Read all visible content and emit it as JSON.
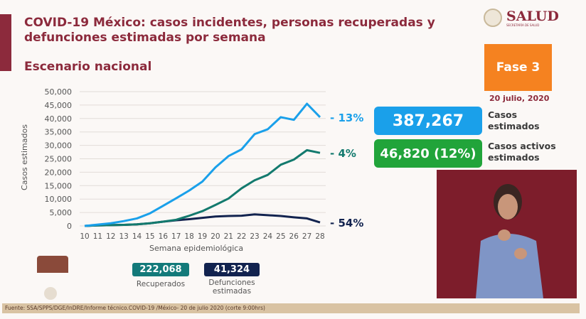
{
  "header": {
    "title": "COVID-19 México: casos incidentes, personas recuperadas y defunciones estimadas por semana",
    "subtitle": "Escenario nacional",
    "logo_text": "SALUD",
    "logo_subtext": "SECRETARÍA DE SALUD"
  },
  "phase": {
    "label": "Fase 3",
    "date": "20 julio, 2020",
    "color": "#f58220"
  },
  "stats": [
    {
      "value": "387,267",
      "label": "Casos estimados",
      "color": "#1aa0ea"
    },
    {
      "value": "46,820 (12%)",
      "label": "Casos activos estimados",
      "color": "#21a43a"
    }
  ],
  "totals": [
    {
      "value": "222,068",
      "label": "Recuperados",
      "color": "#137a7a"
    },
    {
      "value": "41,324",
      "label": "Defunciones estimadas",
      "color": "#12234f"
    }
  ],
  "footer": "Fuente: SSA/SPPS/DGE/InDRE/Informe técnico.COVID-19 /México- 20 de julio 2020 (corte 9:00hrs)",
  "chart_data": {
    "type": "line",
    "xlabel": "Semana epidemiológica",
    "ylabel": "Casos estimados",
    "ylim": [
      0,
      50000
    ],
    "yticks": [
      0,
      5000,
      10000,
      15000,
      20000,
      25000,
      30000,
      35000,
      40000,
      45000,
      50000
    ],
    "ytick_labels": [
      "0",
      "5,000",
      "10,000",
      "15,000",
      "20,000",
      "25,000",
      "30,000",
      "35,000",
      "40,000",
      "45,000",
      "50,000"
    ],
    "grid": true,
    "x": [
      10,
      11,
      12,
      13,
      14,
      15,
      16,
      17,
      18,
      19,
      20,
      21,
      22,
      23,
      24,
      25,
      26,
      27,
      28
    ],
    "series": [
      {
        "color": "#1aa0ea",
        "end_label": "- 13%",
        "values": [
          0,
          500,
          1000,
          1800,
          2800,
          4700,
          7500,
          10300,
          13200,
          16500,
          21800,
          26000,
          28500,
          34200,
          36000,
          40500,
          39500,
          45500,
          40500
        ]
      },
      {
        "color": "#137a6e",
        "end_label": "- 4%",
        "values": [
          0,
          200,
          300,
          400,
          600,
          1000,
          1600,
          2300,
          3800,
          5500,
          7800,
          10200,
          14000,
          17000,
          19000,
          22800,
          24700,
          28200,
          27200
        ]
      },
      {
        "color": "#12234f",
        "end_label": "- 54%",
        "values": [
          0,
          200,
          300,
          400,
          600,
          1000,
          1600,
          2100,
          2500,
          3000,
          3500,
          3700,
          3800,
          4300,
          4000,
          3700,
          3200,
          2800,
          1300
        ]
      }
    ]
  }
}
